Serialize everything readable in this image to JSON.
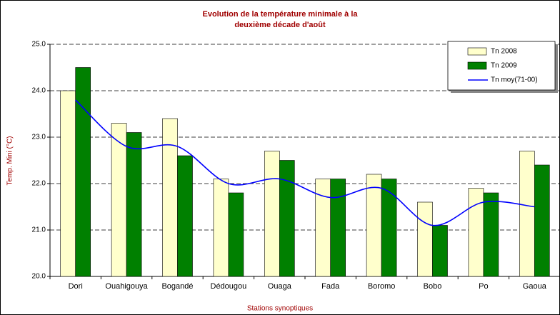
{
  "chart_data": {
    "type": "bar_line",
    "title": [
      "Evolution de la température minimale à la",
      "deuxième décade d'août"
    ],
    "x_label": "Stations synoptiques",
    "y_label": "Temp. Mini (°C)",
    "categories": [
      "Dori",
      "Ouahigouya",
      "Bogandé",
      "Dédougou",
      "Ouaga",
      "Fada",
      "Boromo",
      "Bobo",
      "Po",
      "Gaoua"
    ],
    "series": [
      {
        "name": "Tn  2008",
        "type": "bar",
        "color": "#ffffcc",
        "values": [
          24.0,
          23.3,
          23.4,
          22.1,
          22.7,
          22.1,
          22.2,
          21.6,
          21.9,
          22.7
        ]
      },
      {
        "name": "Tn  2009",
        "type": "bar",
        "color": "#008000",
        "values": [
          24.5,
          23.1,
          22.6,
          21.8,
          22.5,
          22.1,
          22.1,
          21.1,
          21.8,
          22.4
        ]
      },
      {
        "name": "Tn moy(71-00)",
        "type": "line",
        "color": "#0000ff",
        "values": [
          23.8,
          22.8,
          22.8,
          22.0,
          22.1,
          21.7,
          21.9,
          21.1,
          21.6,
          21.5
        ]
      }
    ],
    "ylim": [
      20,
      25
    ],
    "yticks": [
      {
        "value": 20,
        "label": "20.0"
      },
      {
        "value": 21,
        "label": "21.0"
      },
      {
        "value": 22,
        "label": "22.0"
      },
      {
        "value": 23,
        "label": "23.0"
      },
      {
        "value": 24,
        "label": "24.0"
      },
      {
        "value": 25,
        "label": "25.0"
      }
    ],
    "grid": true,
    "legend": "top-right"
  }
}
